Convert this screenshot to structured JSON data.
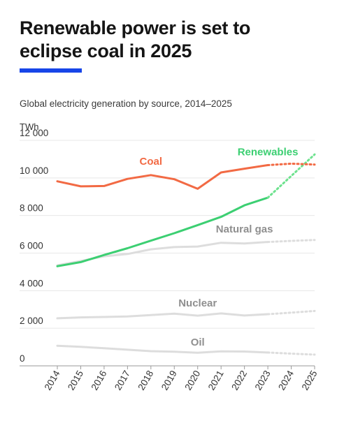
{
  "header": {
    "title": "Renewable power is set to\neclipse coal in 2025",
    "subtitle": "Global electricity generation by source, 2014–2025",
    "accent_color": "#1745e8"
  },
  "chart_data": {
    "type": "line",
    "title": "Renewable power is set to eclipse coal in 2025",
    "subtitle": "Global electricity generation by source, 2014–2025",
    "unit_label": "TWh",
    "x": [
      "2014",
      "2015",
      "2016",
      "2017",
      "2018",
      "2019",
      "2020",
      "2021",
      "2022",
      "2023",
      "2024",
      "2025"
    ],
    "forecast_from": "2023",
    "ylim": [
      0,
      12000
    ],
    "yticks": [
      0,
      2000,
      4000,
      6000,
      8000,
      10000,
      12000
    ],
    "ytick_labels": [
      "0",
      "2 000",
      "4 000",
      "6 000",
      "8 000",
      "10 000",
      "12 000"
    ],
    "grid": true,
    "series": [
      {
        "name": "Coal",
        "color": "#f26a44",
        "values": [
          9820,
          9550,
          9570,
          9950,
          10150,
          9930,
          9420,
          10290,
          10490,
          10680,
          10760,
          10710
        ]
      },
      {
        "name": "Renewables",
        "color": "#3ccf72",
        "forecast_color": "#6ee28f",
        "values": [
          5300,
          5520,
          5900,
          6260,
          6660,
          7060,
          7490,
          7930,
          8540,
          8950,
          10100,
          11250
        ]
      },
      {
        "name": "Natural gas",
        "color": "#dddddd",
        "values": [
          5350,
          5580,
          5830,
          5950,
          6200,
          6320,
          6350,
          6550,
          6510,
          6590,
          6650,
          6700
        ]
      },
      {
        "name": "Nuclear",
        "color": "#dddddd",
        "values": [
          2530,
          2580,
          2600,
          2630,
          2700,
          2780,
          2670,
          2790,
          2680,
          2750,
          2830,
          2920
        ]
      },
      {
        "name": "Oil",
        "color": "#dddddd",
        "values": [
          1070,
          1010,
          940,
          860,
          780,
          750,
          700,
          770,
          760,
          710,
          650,
          600
        ]
      }
    ],
    "labels": [
      {
        "series": "Coal",
        "text": "Coal",
        "color": "#f26a44",
        "anchor_year": "2018",
        "value": 10700
      },
      {
        "series": "Renewables",
        "text": "Renewables",
        "color": "#3ccf72",
        "anchor_year": "2023",
        "value": 11200
      },
      {
        "series": "Natural gas",
        "text": "Natural gas",
        "color": "#8f8f8f",
        "anchor_year": "2022",
        "value": 7100
      },
      {
        "series": "Nuclear",
        "text": "Nuclear",
        "color": "#8f8f8f",
        "anchor_year": "2020",
        "value": 3150
      },
      {
        "series": "Oil",
        "text": "Oil",
        "color": "#8f8f8f",
        "anchor_year": "2020",
        "value": 1080
      }
    ]
  }
}
